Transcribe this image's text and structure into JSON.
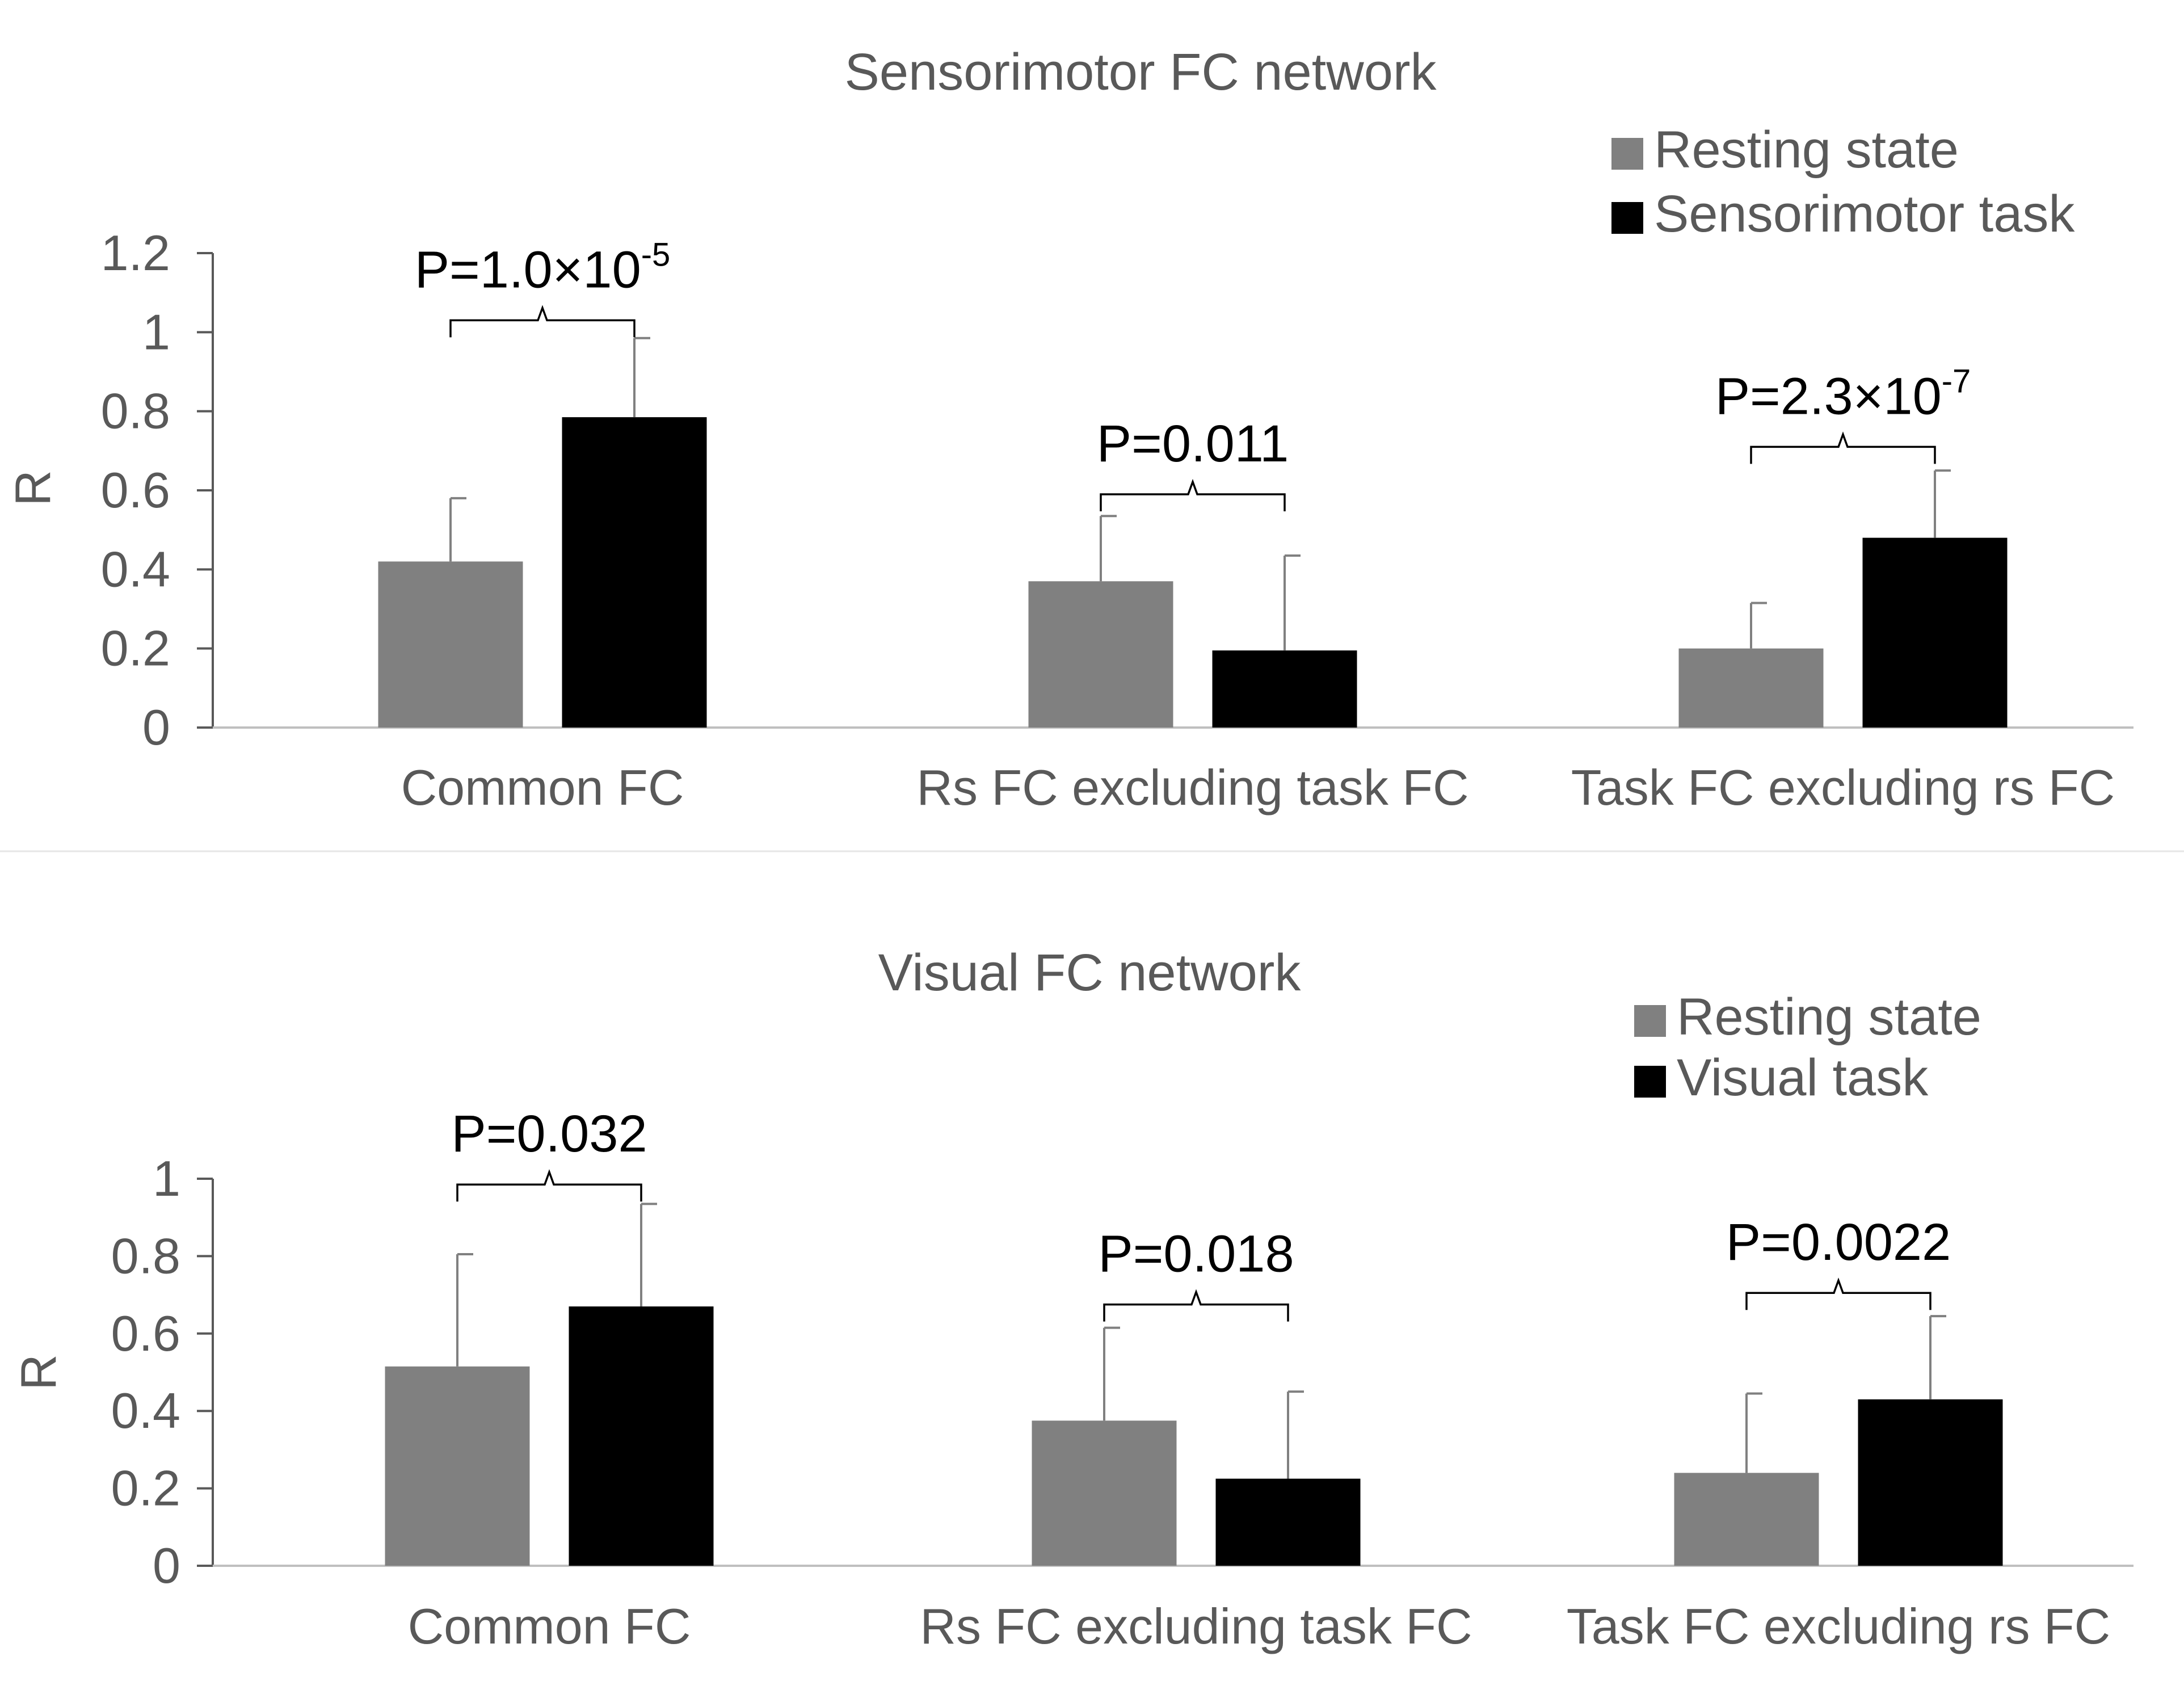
{
  "colors": {
    "resting": "#808080",
    "task": "#000000",
    "axis": "#595959",
    "error": "#808080"
  },
  "chart_data": [
    {
      "type": "bar",
      "title": "Sensorimotor FC network",
      "ylabel": "R",
      "xlabel": "",
      "ylim": [
        0,
        1.2
      ],
      "yticks": [
        "0",
        "0.2",
        "0.4",
        "0.6",
        "0.8",
        "1",
        "1.2"
      ],
      "ytick_values": [
        0,
        0.2,
        0.4,
        0.6,
        0.8,
        1.0,
        1.2
      ],
      "legend_position": "top-right",
      "categories": [
        "Common FC",
        "Rs FC excluding task FC",
        "Task FC excluding rs FC"
      ],
      "series": [
        {
          "name": "Resting state",
          "values": [
            0.42,
            0.37,
            0.2
          ],
          "errors": [
            0.16,
            0.165,
            0.115
          ]
        },
        {
          "name": "Sensorimotor task",
          "values": [
            0.785,
            0.195,
            0.48
          ],
          "errors": [
            0.2,
            0.24,
            0.17
          ]
        }
      ],
      "annotations": [
        {
          "category_index": 0,
          "base": "P=1.0×10",
          "exponent": "-5",
          "bracket_value": 1.03
        },
        {
          "category_index": 1,
          "base": "P=0.011",
          "exponent": "",
          "bracket_value": 0.59
        },
        {
          "category_index": 2,
          "base": "P=2.3×10",
          "exponent": "-7",
          "bracket_value": 0.71
        }
      ]
    },
    {
      "type": "bar",
      "title": "Visual FC network",
      "ylabel": "R",
      "xlabel": "",
      "ylim": [
        0,
        1.0
      ],
      "yticks": [
        "0",
        "0.2",
        "0.4",
        "0.6",
        "0.8",
        "1"
      ],
      "ytick_values": [
        0,
        0.2,
        0.4,
        0.6,
        0.8,
        1.0
      ],
      "legend_position": "top-right",
      "categories": [
        "Common FC",
        "Rs FC excluding task FC",
        "Task FC excluding rs FC"
      ],
      "series": [
        {
          "name": "Resting state",
          "values": [
            0.515,
            0.375,
            0.24
          ],
          "errors": [
            0.29,
            0.24,
            0.205
          ]
        },
        {
          "name": "Visual task",
          "values": [
            0.67,
            0.225,
            0.43
          ],
          "errors": [
            0.265,
            0.225,
            0.215
          ]
        }
      ],
      "annotations": [
        {
          "category_index": 0,
          "base": "P=0.032",
          "exponent": "",
          "bracket_value": 0.985
        },
        {
          "category_index": 1,
          "base": "P=0.018",
          "exponent": "",
          "bracket_value": 0.675
        },
        {
          "category_index": 2,
          "base": "P=0.0022",
          "exponent": "",
          "bracket_value": 0.705
        }
      ]
    }
  ]
}
